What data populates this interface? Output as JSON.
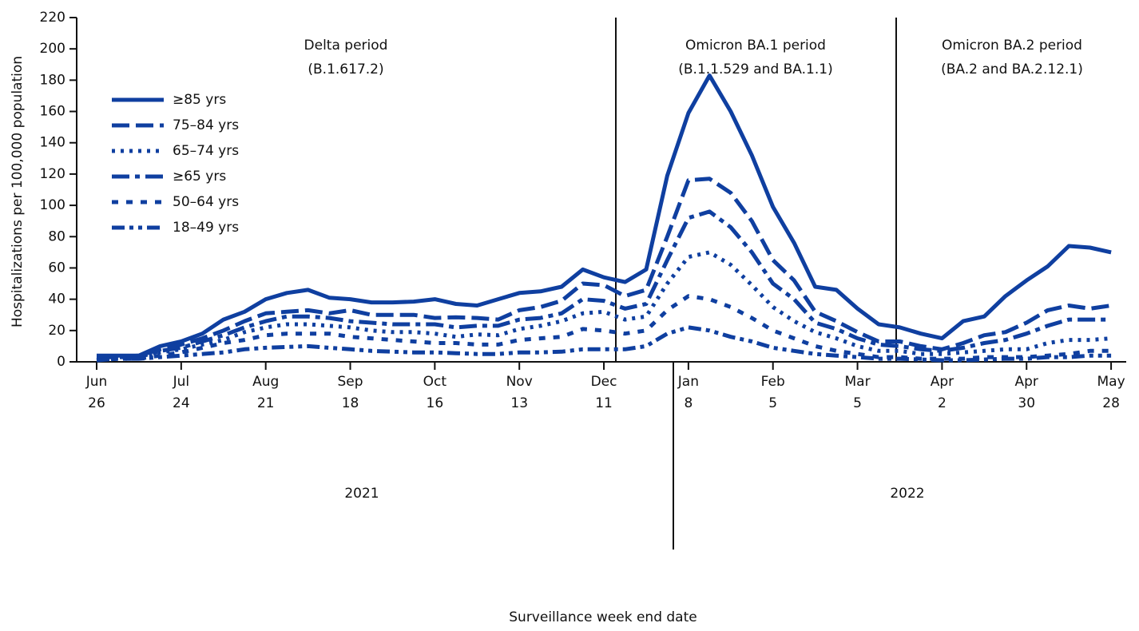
{
  "chart_data": {
    "type": "line",
    "x_label": "Surveillance week end date",
    "y_label": "Hospitalizations per 100,000 population",
    "categories": [
      "Jun 26",
      null,
      null,
      null,
      "Jul 24",
      null,
      null,
      null,
      "Aug 21",
      null,
      null,
      null,
      "Sep 18",
      null,
      null,
      null,
      "Oct 16",
      null,
      null,
      null,
      "Nov 13",
      null,
      null,
      null,
      "Dec 11",
      null,
      null,
      null,
      "Jan 8",
      null,
      null,
      null,
      "Feb 5",
      null,
      null,
      null,
      "Mar 5",
      null,
      null,
      null,
      "Apr 2",
      null,
      null,
      null,
      "Apr 30",
      null,
      null,
      null,
      "May 28"
    ],
    "years": [
      "2021",
      "2022"
    ],
    "periods": [
      {
        "name": "Delta period",
        "variants": "(B.1.617.2)"
      },
      {
        "name": "Omicron BA.1 period",
        "variants": "(B.1.1.529 and BA.1.1)"
      },
      {
        "name": "Omicron BA.2 period",
        "variants": "(BA.2 and BA.2.12.1)"
      }
    ],
    "ylim": [
      0,
      220
    ],
    "yticks": [
      0,
      20,
      40,
      60,
      80,
      100,
      120,
      140,
      160,
      180,
      200,
      220
    ],
    "series": [
      {
        "name": "≥85 yrs",
        "color": "#0f3fa0",
        "line_style": "solid",
        "values": [
          4,
          4,
          4,
          10,
          13,
          18,
          27,
          32,
          40,
          44,
          46,
          41,
          40,
          38,
          38,
          38.5,
          40,
          37,
          36,
          40,
          44,
          45,
          48,
          59,
          54,
          51,
          59,
          119,
          159,
          183,
          160,
          132,
          99,
          76,
          48,
          46,
          34,
          24,
          22,
          18,
          15,
          26,
          29,
          42,
          52,
          61,
          74,
          73,
          70
        ]
      },
      {
        "name": "75–84 yrs",
        "color": "#0f3fa0",
        "line_style": "dashed",
        "values": [
          3,
          3,
          4,
          8,
          11,
          15,
          20,
          26,
          31,
          32,
          33,
          31,
          33,
          30,
          30,
          30,
          28,
          28.5,
          28,
          27,
          33,
          35,
          39,
          50,
          49,
          42,
          46,
          80,
          116,
          117,
          108,
          90,
          65,
          52,
          32,
          26,
          19,
          13,
          13,
          10,
          8,
          12,
          17,
          19,
          25,
          33,
          36,
          34,
          36
        ]
      },
      {
        "name": "65–74 yrs",
        "color": "#0f3fa0",
        "line_style": "dotted",
        "values": [
          2,
          2,
          3,
          6,
          8,
          11,
          14,
          19,
          22,
          24,
          24,
          23,
          22,
          20,
          19,
          19,
          18,
          16,
          17.5,
          17,
          21,
          23,
          26,
          31,
          32,
          27,
          29,
          50,
          67,
          70,
          62,
          49,
          35,
          26,
          19,
          15,
          10,
          7,
          7,
          5,
          5,
          6,
          7,
          8,
          8,
          12,
          14,
          14,
          15
        ]
      },
      {
        "name": "≥65 yrs",
        "color": "#0f3fa0",
        "line_style": "dashdot",
        "values": [
          3,
          3,
          3,
          7,
          9,
          13,
          17,
          22,
          26,
          29,
          29,
          28,
          26,
          25,
          24,
          24,
          24,
          22,
          23,
          23,
          27,
          28,
          31,
          40,
          39,
          34,
          37,
          65,
          92,
          96,
          86,
          70,
          50,
          40,
          25,
          21,
          15,
          11,
          10,
          8,
          7,
          9,
          12,
          14,
          18,
          23,
          27,
          27,
          27
        ]
      },
      {
        "name": "50–64 yrs",
        "color": "#0f3fa0",
        "line_style": "short-dashed",
        "values": [
          1,
          2,
          2,
          4,
          6,
          9,
          12,
          14,
          17,
          18,
          18,
          18,
          16,
          15,
          14,
          13,
          12,
          12,
          11,
          11,
          14,
          15,
          16,
          21,
          20,
          18,
          20,
          33,
          42,
          40,
          35,
          28,
          20,
          15,
          10,
          7,
          5,
          3,
          3,
          2,
          2,
          2,
          3,
          3,
          3,
          4,
          5,
          7,
          7
        ]
      },
      {
        "name": "18–49 yrs",
        "color": "#0f3fa0",
        "line_style": "dashdotdot",
        "values": [
          1,
          2,
          2,
          3,
          4,
          5,
          6,
          8,
          9,
          9.5,
          10,
          9,
          8,
          7,
          6.5,
          6,
          6,
          5.5,
          5,
          5,
          6,
          6,
          6.5,
          8,
          8,
          8,
          10,
          18,
          22,
          20,
          16,
          13,
          9,
          7,
          5,
          4,
          3,
          2,
          2,
          1.5,
          1,
          1,
          1.5,
          2,
          2,
          3,
          3,
          4,
          4
        ]
      }
    ]
  }
}
